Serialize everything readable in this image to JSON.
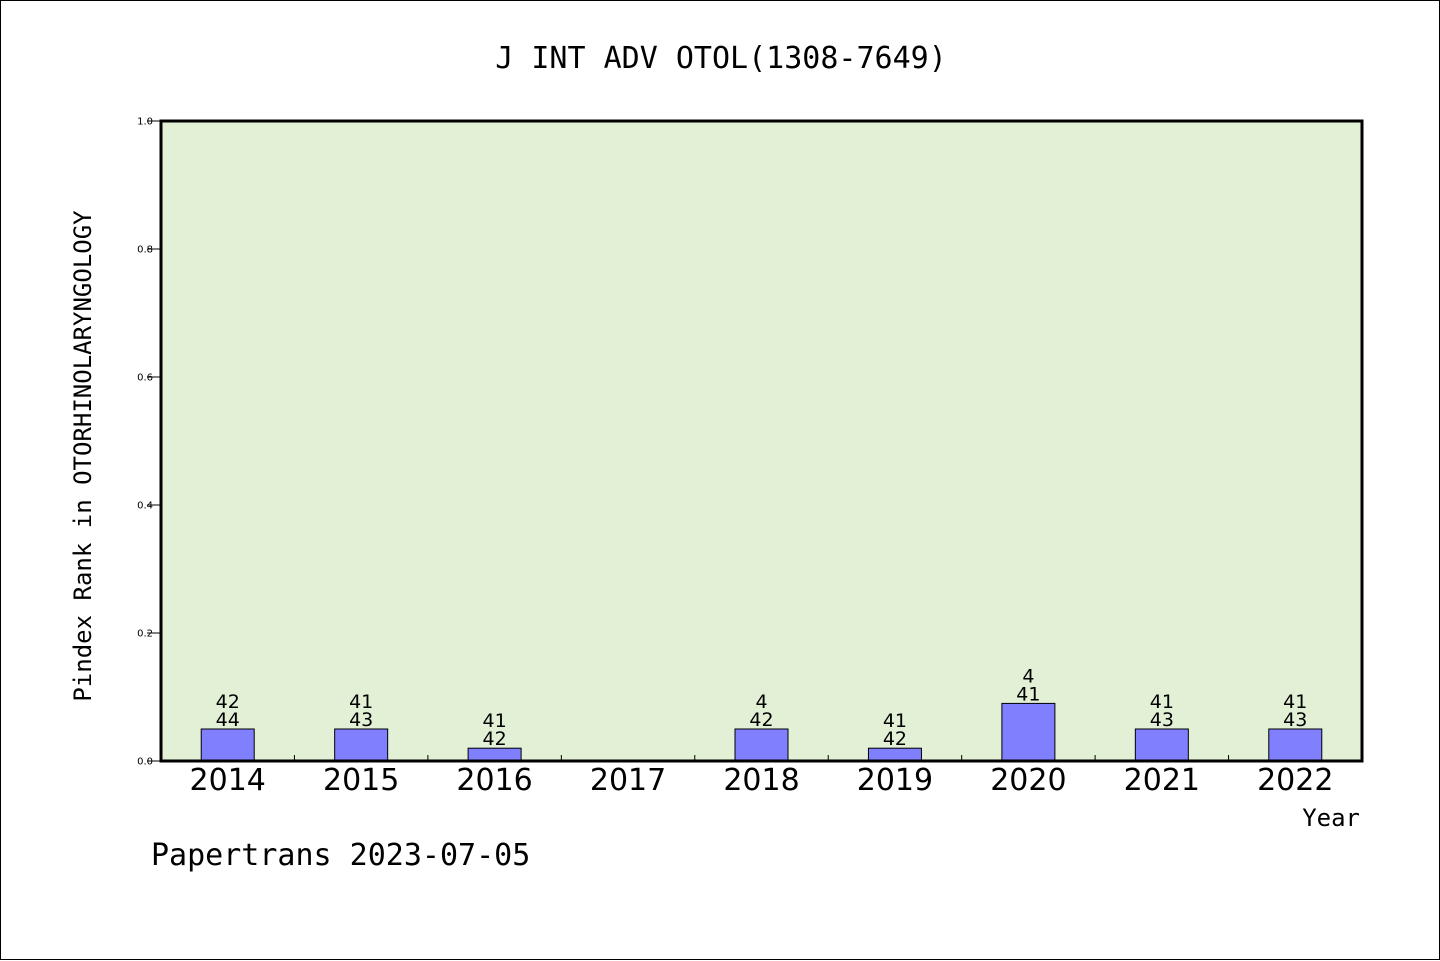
{
  "chart_data": {
    "type": "bar",
    "title": "J INT ADV OTOL(1308-7649)",
    "xlabel": "Year",
    "ylabel": "Pindex Rank in OTORHINOLARYNGOLOGY",
    "footer": "Papertrans 2023-07-05",
    "categories": [
      "2014",
      "2015",
      "2016",
      "2017",
      "2018",
      "2019",
      "2020",
      "2021",
      "2022"
    ],
    "values": [
      0.05,
      0.05,
      0.02,
      null,
      0.05,
      0.02,
      0.09,
      0.05,
      0.05
    ],
    "labels_top": [
      "42",
      "41",
      "41",
      "",
      "4",
      "41",
      "4",
      "41",
      "41"
    ],
    "labels_bottom": [
      "44",
      "43",
      "42",
      "",
      "42",
      "42",
      "41",
      "43",
      "43"
    ],
    "ylim": [
      0,
      1.0
    ],
    "yticks": [
      "0.0",
      "0.2",
      "0.4",
      "0.6",
      "0.8",
      "1.0"
    ],
    "grid": false,
    "colors": {
      "plot_background": "#e2f0d6",
      "bar_fill": "#8080ff",
      "bar_stroke": "#000000"
    }
  }
}
